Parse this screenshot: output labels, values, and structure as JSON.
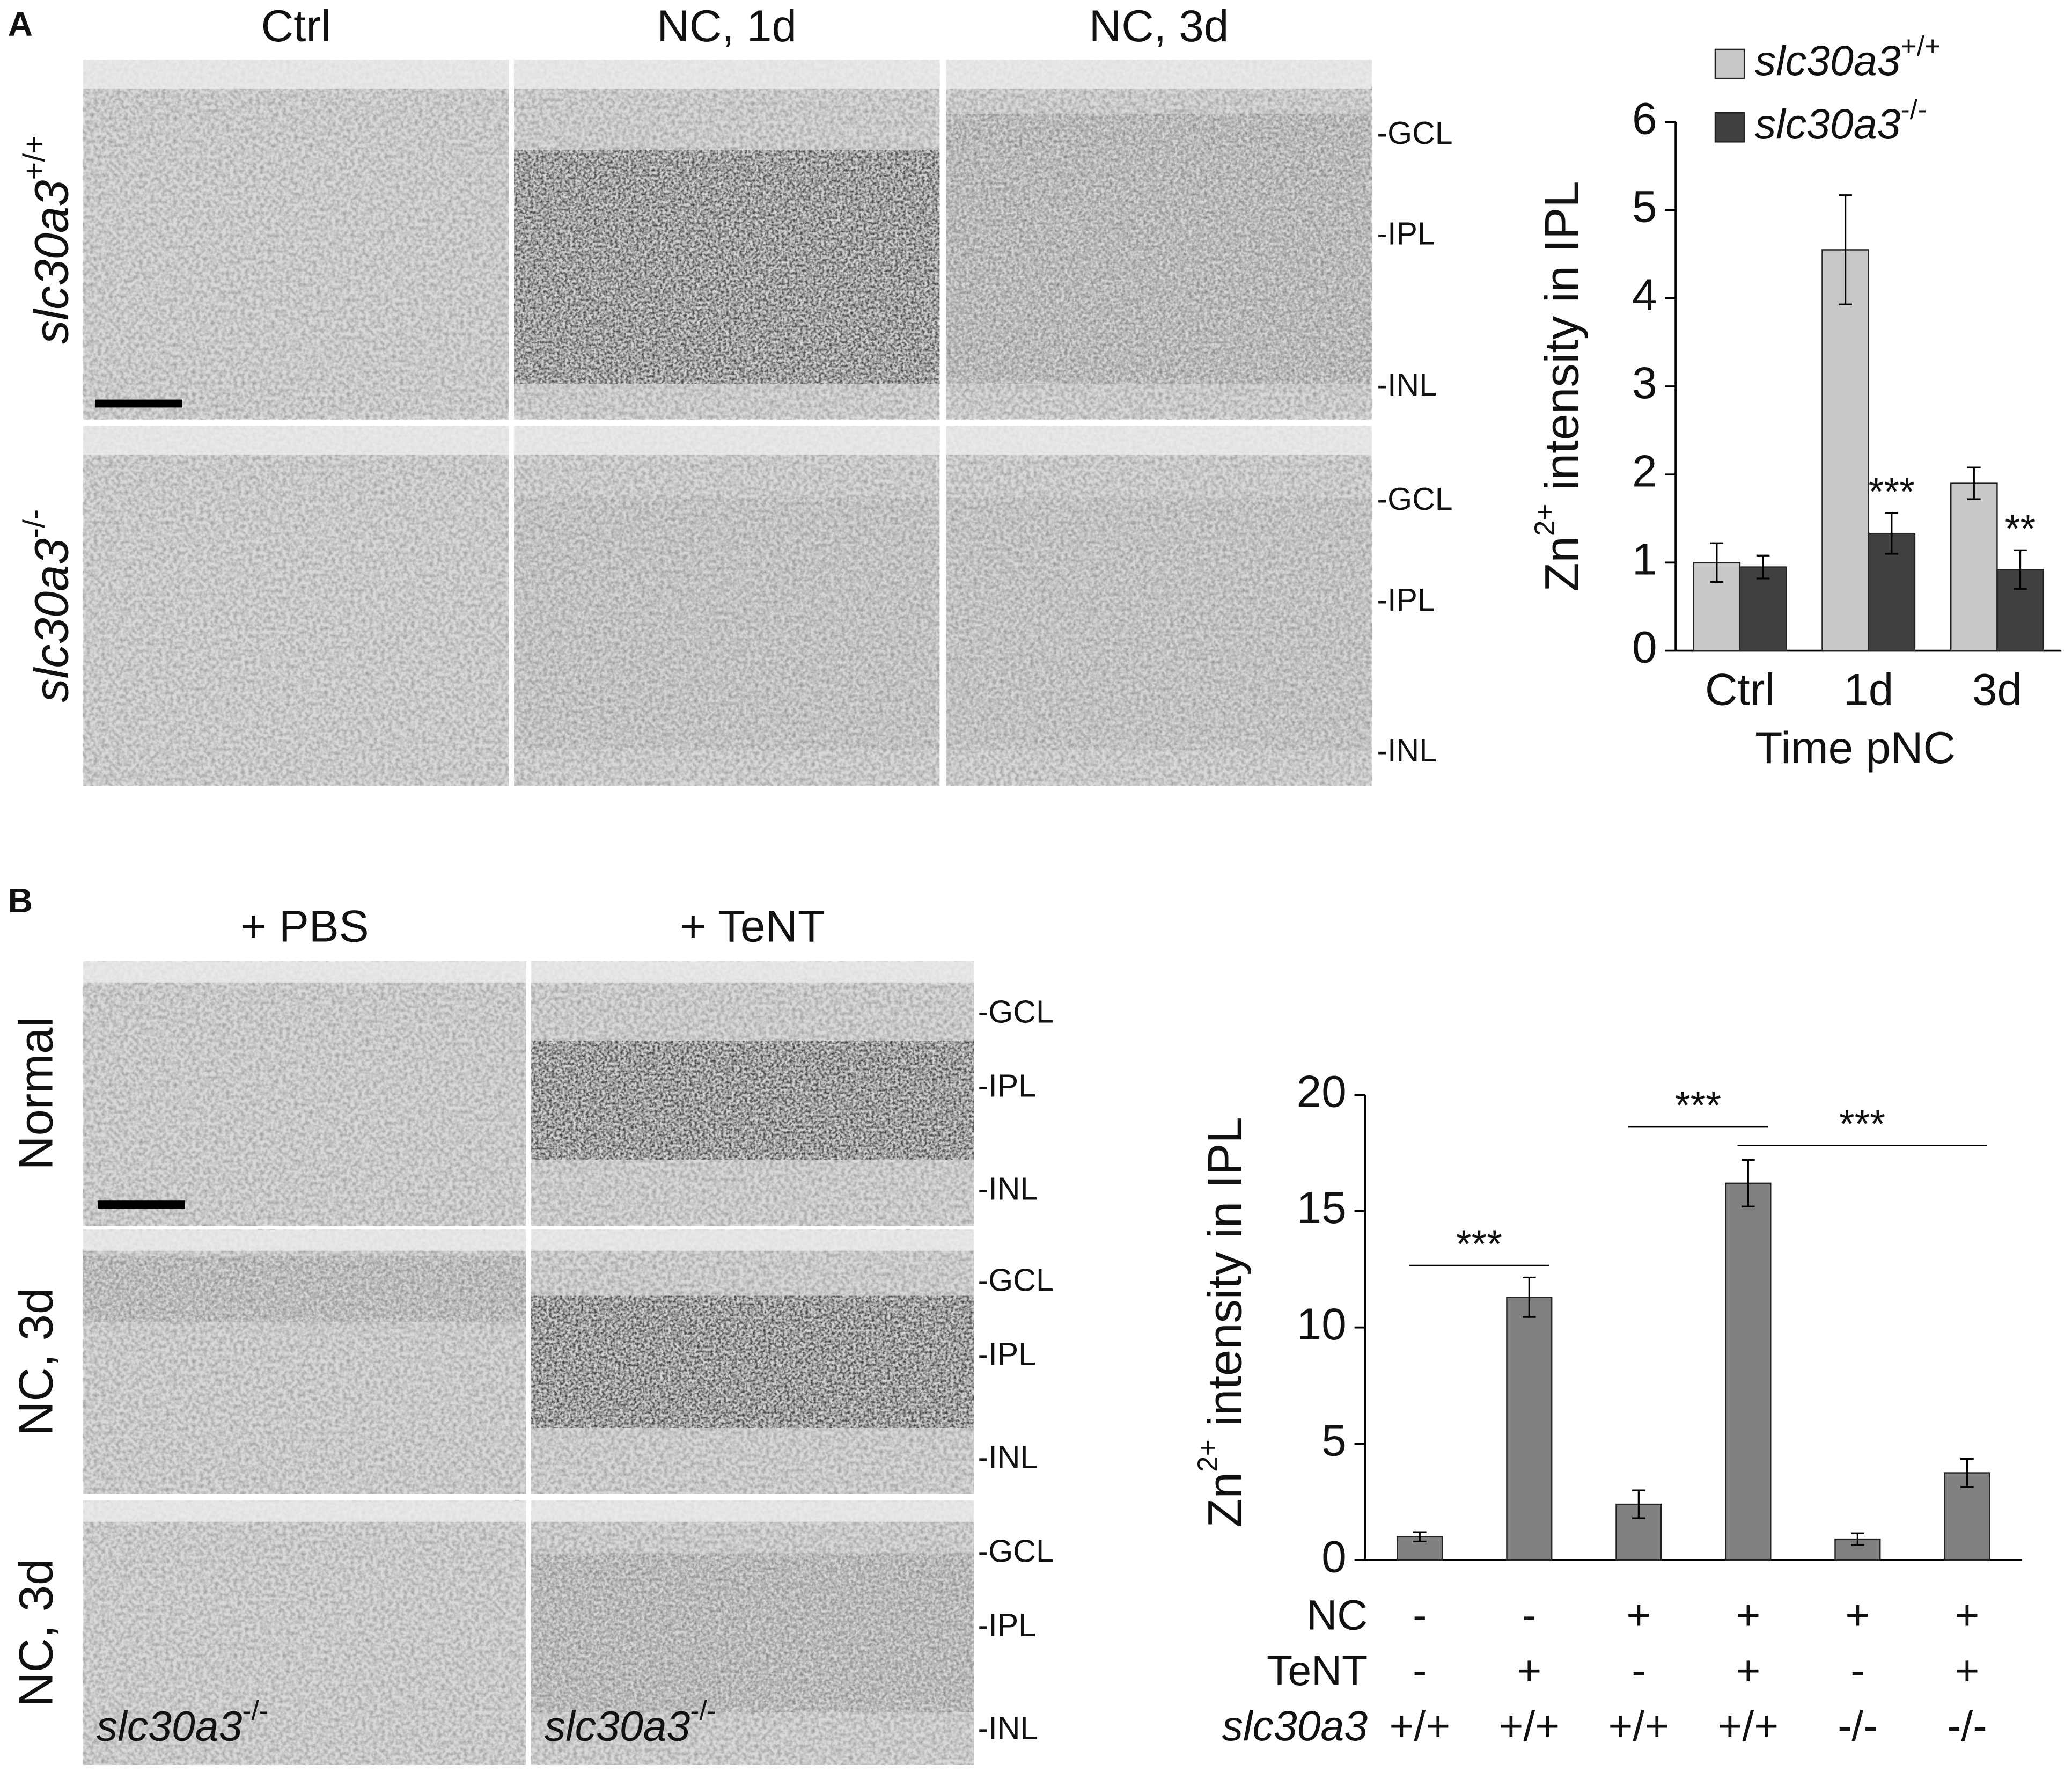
{
  "panel_a": {
    "label": "A",
    "columns": [
      "Ctrl",
      "NC, 1d",
      "NC, 3d"
    ],
    "rows": [
      {
        "gene": "slc30a3",
        "genotype": "+/+"
      },
      {
        "gene": "slc30a3",
        "genotype": "-/-"
      }
    ],
    "layers": [
      "-GCL",
      "-IPL",
      "-INL"
    ]
  },
  "panel_b": {
    "label": "B",
    "columns": [
      "+ PBS",
      "+ TeNT"
    ],
    "rows": [
      "Normal",
      "NC, 3d",
      "NC, 3d"
    ],
    "layers": [
      "-GCL",
      "-IPL",
      "-INL"
    ],
    "image_label": {
      "gene": "slc30a3",
      "genotype": "-/-"
    }
  },
  "chart_data": [
    {
      "type": "bar",
      "ylabel": {
        "base": "Zn",
        "sup": "2+",
        "rest": " intensity in IPL"
      },
      "xlabel": "Time pNC",
      "categories": [
        "Ctrl",
        "1d",
        "3d"
      ],
      "series": [
        {
          "name": "slc30a3",
          "genotype": "+/+",
          "color": "#c8c8c8",
          "values": [
            1.0,
            4.55,
            1.9
          ],
          "errors": [
            0.22,
            0.62,
            0.18
          ]
        },
        {
          "name": "slc30a3",
          "genotype": "-/-",
          "color": "#404040",
          "values": [
            0.95,
            1.33,
            0.92
          ],
          "errors": [
            0.13,
            0.23,
            0.22
          ]
        }
      ],
      "ylim": [
        0,
        6
      ],
      "yticks": [
        0,
        1,
        2,
        3,
        4,
        5,
        6
      ],
      "annotations": [
        {
          "text": "***",
          "series": 1,
          "index": 1
        },
        {
          "text": "**",
          "series": 1,
          "index": 2
        }
      ],
      "legend": "top-left"
    },
    {
      "type": "bar",
      "ylabel": {
        "base": "Zn",
        "sup": "2+",
        "rest": " intensity in IPL"
      },
      "values": [
        1.0,
        11.3,
        2.4,
        16.2,
        0.9,
        3.75
      ],
      "errors": [
        0.2,
        0.85,
        0.6,
        1.0,
        0.25,
        0.6
      ],
      "color": "#808080",
      "ylim": [
        0,
        20
      ],
      "yticks": [
        0,
        5,
        10,
        15,
        20
      ],
      "conditions": [
        {
          "label": "NC",
          "values": [
            "-",
            "-",
            "+",
            "+",
            "+",
            "+"
          ]
        },
        {
          "label": "TeNT",
          "values": [
            "-",
            "+",
            "-",
            "+",
            "-",
            "+"
          ]
        },
        {
          "label": "slc30a3",
          "values": [
            "+/+",
            "+/+",
            "+/+",
            "+/+",
            "-/-",
            "-/-"
          ]
        }
      ],
      "significance": [
        {
          "from": 0,
          "to": 1,
          "label": "***"
        },
        {
          "from": 2,
          "to": 3,
          "label": "***"
        },
        {
          "from": 3,
          "to": 5,
          "label": "***"
        }
      ]
    }
  ]
}
